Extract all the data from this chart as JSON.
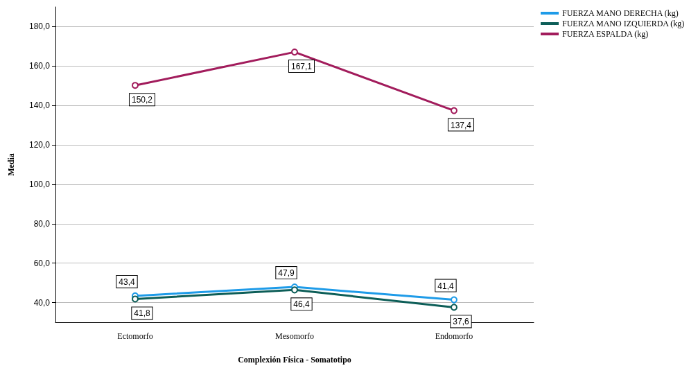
{
  "chart_data": {
    "type": "line",
    "xlabel": "Complexión Física - Somatotipo",
    "ylabel": "Media",
    "categories": [
      "Ectomorfo",
      "Mesomorfo",
      "Endomorfo"
    ],
    "series": [
      {
        "name": "FUERZA MANO DERECHA (kg)",
        "color": "#1e9be8",
        "values": [
          43.4,
          47.9,
          41.4
        ],
        "value_labels": [
          "43,4",
          "47,9",
          "41,4"
        ]
      },
      {
        "name": "FUERZA MANO IZQUIERDA (kg)",
        "color": "#0d5e58",
        "values": [
          41.8,
          46.4,
          37.6
        ],
        "value_labels": [
          "41,8",
          "46,4",
          "37,6"
        ]
      },
      {
        "name": "FUERZA ESPALDA (kg)",
        "color": "#a21c5c",
        "values": [
          150.2,
          167.1,
          137.4
        ],
        "value_labels": [
          "150,2",
          "167,1",
          "137,4"
        ]
      }
    ],
    "ylim": [
      30,
      190
    ],
    "yticks": [
      {
        "value": 40,
        "label": "40,0"
      },
      {
        "value": 60,
        "label": "60,0"
      },
      {
        "value": 80,
        "label": "80,0"
      },
      {
        "value": 100,
        "label": "100,0"
      },
      {
        "value": 120,
        "label": "120,0"
      },
      {
        "value": 140,
        "label": "140,0"
      },
      {
        "value": 160,
        "label": "160,0"
      },
      {
        "value": 180,
        "label": "180,0"
      }
    ],
    "grid": "y",
    "legend": "top right",
    "marker": "circle",
    "line_style": "solid"
  }
}
